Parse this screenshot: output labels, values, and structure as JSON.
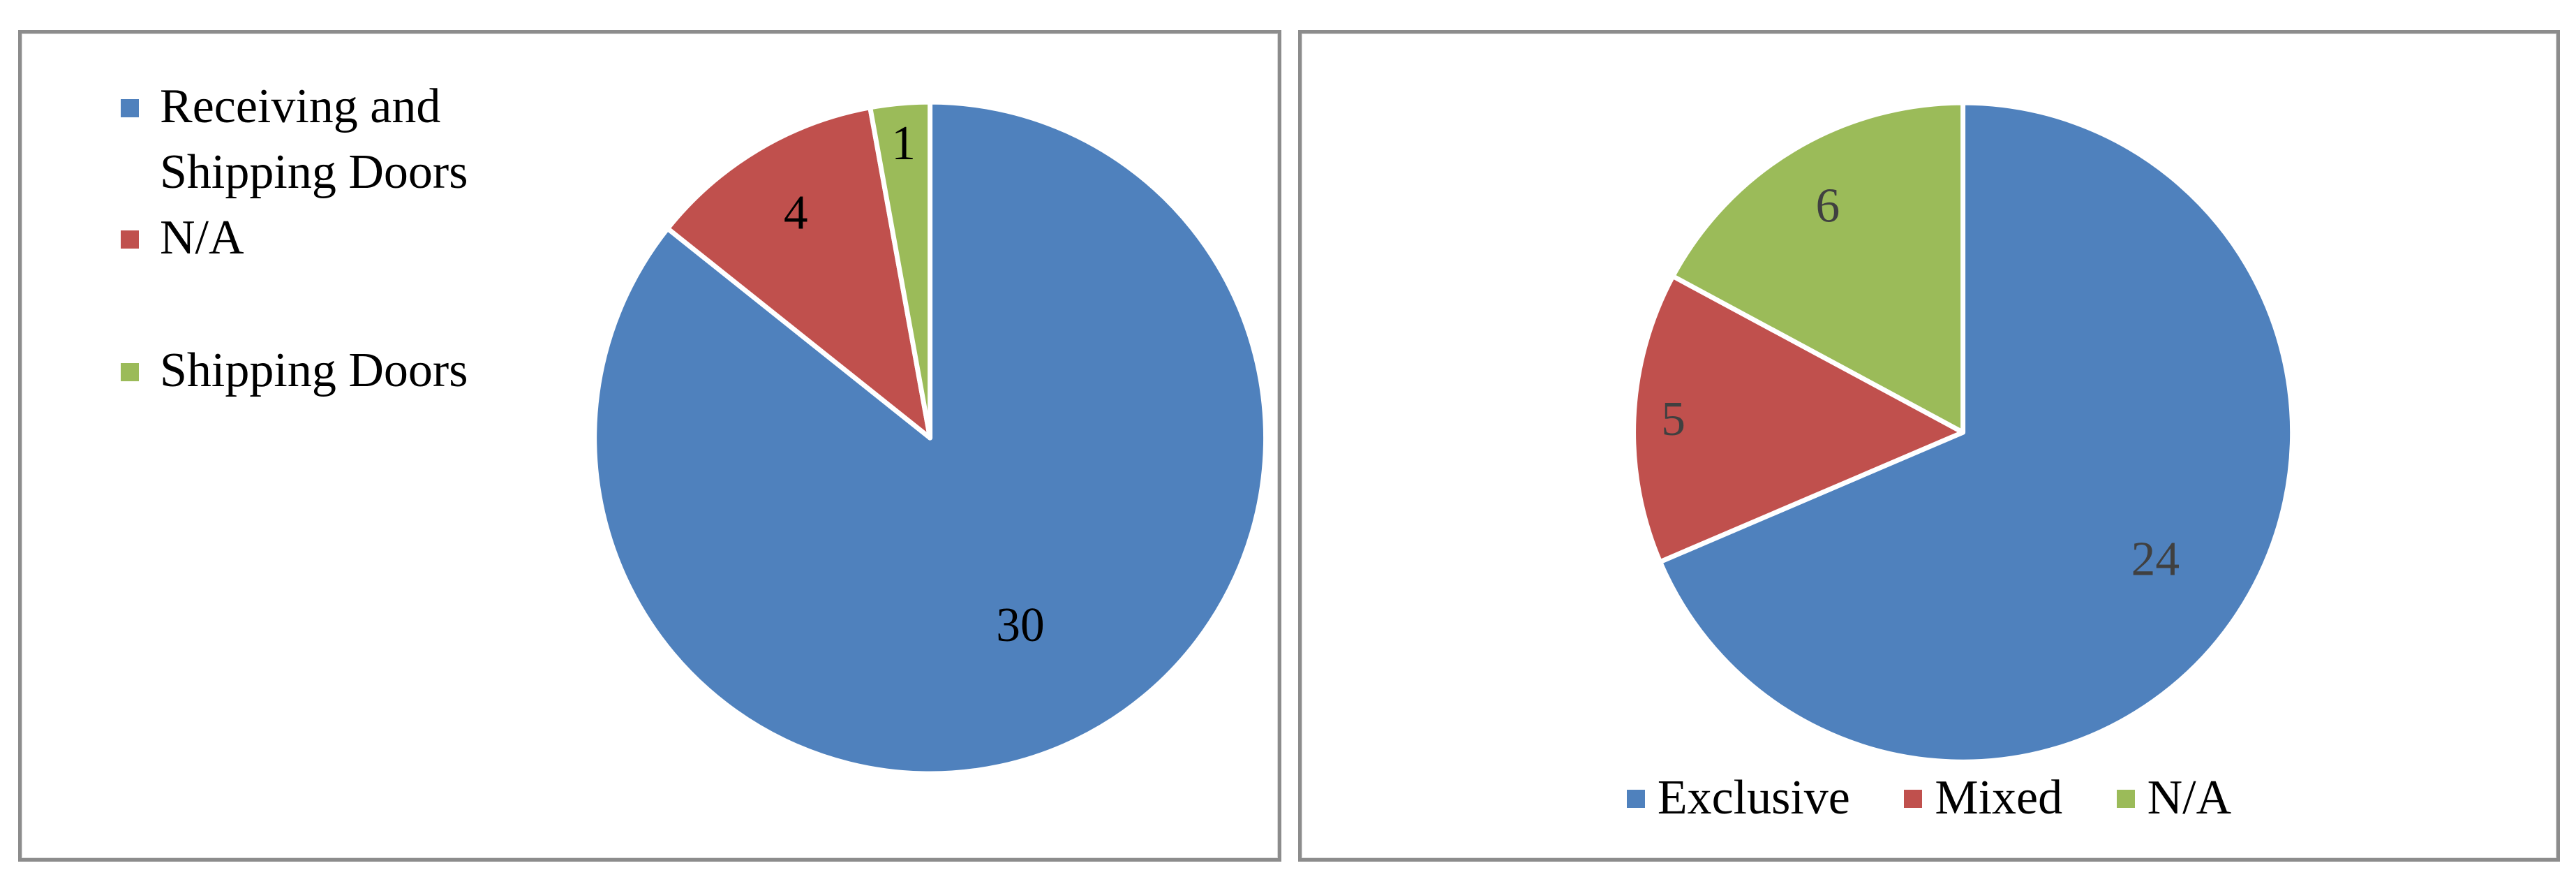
{
  "chart_data": [
    {
      "type": "pie",
      "title": "",
      "legend_position": "top-left",
      "start_angle_deg": 0,
      "direction": "clockwise",
      "series": [
        {
          "name": "Receiving and Shipping Doors",
          "value": 30,
          "color": "#4F81BD"
        },
        {
          "name": "N/A",
          "value": 4,
          "color": "#C0504D"
        },
        {
          "name": "Shipping Doors",
          "value": 1,
          "color": "#9BBB59"
        }
      ],
      "data_labels": [
        "30",
        "4",
        "1"
      ],
      "label_color": "#000000"
    },
    {
      "type": "pie",
      "title": "",
      "legend_position": "bottom",
      "start_angle_deg": 0,
      "direction": "clockwise",
      "series": [
        {
          "name": "Exclusive",
          "value": 24,
          "color": "#4F81BD"
        },
        {
          "name": "Mixed",
          "value": 5,
          "color": "#C0504D"
        },
        {
          "name": "N/A",
          "value": 6,
          "color": "#9BBB59"
        }
      ],
      "data_labels": [
        "24",
        "5",
        "6"
      ],
      "label_color": "#404040"
    }
  ]
}
